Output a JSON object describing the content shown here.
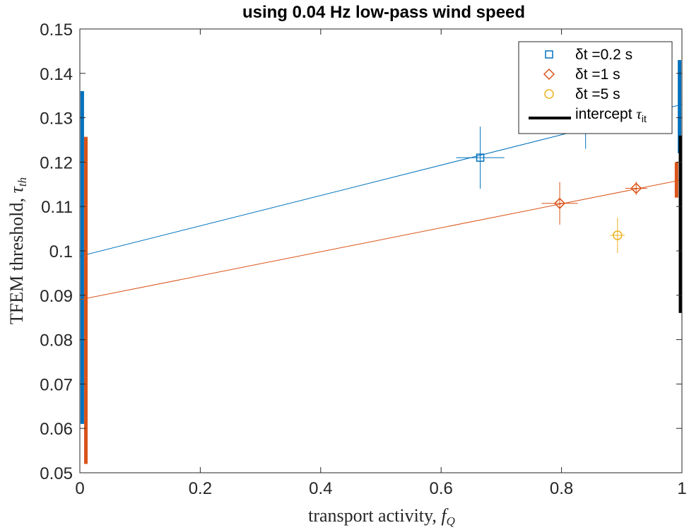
{
  "chart_data": {
    "type": "scatter",
    "title": "using 0.04 Hz low-pass wind speed",
    "xlabel": "transport activity,",
    "xlabel_symbol": "f",
    "xlabel_sub": "Q",
    "ylabel": "TFEM threshold,",
    "ylabel_symbol": "τ",
    "ylabel_sub": "th",
    "xlim": [
      0,
      1
    ],
    "ylim": [
      0.05,
      0.15
    ],
    "x_ticks": [
      0,
      0.2,
      0.4,
      0.6,
      0.8,
      1
    ],
    "x_tick_labels": [
      "0",
      "0.2",
      "0.4",
      "0.6",
      "0.8",
      "1"
    ],
    "y_ticks": [
      0.05,
      0.06,
      0.07,
      0.08,
      0.09,
      0.1,
      0.11,
      0.12,
      0.13,
      0.14,
      0.15
    ],
    "y_tick_labels": [
      "0.05",
      "0.06",
      "0.07",
      "0.08",
      "0.09",
      "0.1",
      "0.11",
      "0.12",
      "0.13",
      "0.14",
      "0.15"
    ],
    "grid": false,
    "legend_position": "top-right",
    "series": [
      {
        "name": "δt =0.2 s",
        "color": "#0072BD",
        "marker": "square",
        "points": [
          {
            "x": 0.665,
            "y": 0.121,
            "xerr": 0.04,
            "yerr": 0.007
          },
          {
            "x": 0.84,
            "y": 0.1275,
            "xerr": 0.0,
            "yerr": 0.0045
          }
        ],
        "fit_line": {
          "x": [
            0,
            1
          ],
          "y": [
            0.0988,
            0.133
          ]
        },
        "intercept_bar": {
          "x": 0.004,
          "y": [
            0.061,
            0.136
          ]
        },
        "endpoint_bar": {
          "x": 0.996,
          "y": [
            0.122,
            0.143
          ]
        }
      },
      {
        "name": "δt =1 s",
        "color": "#D95319",
        "marker": "diamond",
        "points": [
          {
            "x": 0.797,
            "y": 0.1107,
            "xerr": 0.03,
            "yerr": 0.0048
          },
          {
            "x": 0.924,
            "y": 0.1141,
            "xerr": 0.018,
            "yerr": 0.0015
          }
        ],
        "fit_line": {
          "x": [
            0,
            1
          ],
          "y": [
            0.089,
            0.116
          ]
        },
        "intercept_bar": {
          "x": 0.01,
          "y": [
            0.052,
            0.1257
          ]
        },
        "endpoint_bar": {
          "x": 0.991,
          "y": [
            0.112,
            0.12
          ]
        }
      },
      {
        "name": "δt =5 s",
        "color": "#EDB120",
        "marker": "circle",
        "points": [
          {
            "x": 0.893,
            "y": 0.1035,
            "xerr": 0.012,
            "yerr": 0.004
          }
        ]
      }
    ],
    "intercept_series": {
      "name": "intercept",
      "symbol": "τ",
      "sub": "it",
      "color": "#000000",
      "bar": {
        "x": 1.0,
        "y": [
          0.086,
          0.126
        ]
      }
    }
  }
}
